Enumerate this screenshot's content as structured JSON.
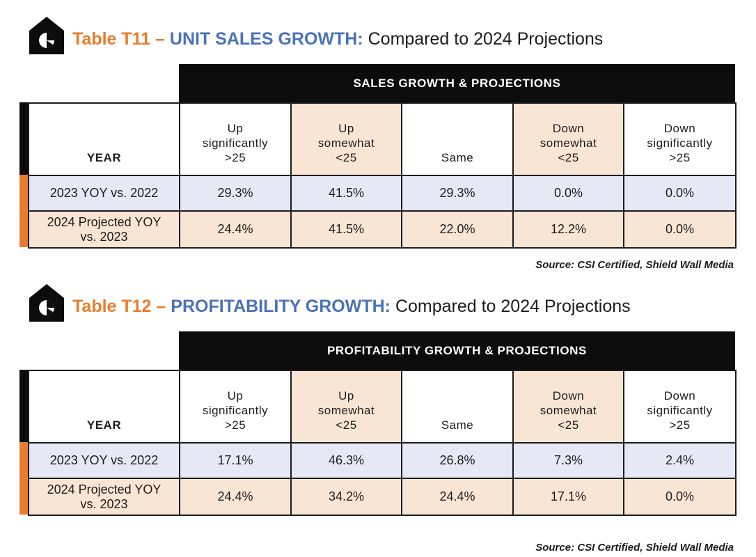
{
  "chart_data": [
    {
      "type": "table",
      "table_number": "Table T11",
      "title": "UNIT SALES GROWTH:",
      "subtitle": "Compared to 2024 Projections",
      "banner": "SALES GROWTH & PROJECTIONS",
      "row_header": "YEAR",
      "columns": [
        "Up\nsignificantly\n>25",
        "Up\nsomewhat\n<25",
        "Same",
        "Down\nsomewhat\n<25",
        "Down\nsignificantly\n>25"
      ],
      "rows": [
        {
          "label": "2023 YOY vs. 2022",
          "values": [
            "29.3%",
            "41.5%",
            "29.3%",
            "0.0%",
            "0.0%"
          ]
        },
        {
          "label": "2024 Projected YOY\nvs. 2023",
          "values": [
            "24.4%",
            "41.5%",
            "22.0%",
            "12.2%",
            "0.0%"
          ]
        }
      ],
      "source": "Source: CSI Certified, Shield Wall Media"
    },
    {
      "type": "table",
      "table_number": "Table T12",
      "title": "PROFITABILITY GROWTH:",
      "subtitle": "Compared to 2024 Projections",
      "banner": "PROFITABILITY GROWTH & PROJECTIONS",
      "row_header": "YEAR",
      "columns": [
        "Up\nsignificantly\n>25",
        "Up\nsomewhat\n<25",
        "Same",
        "Down\nsomewhat\n<25",
        "Down\nsignificantly\n>25"
      ],
      "rows": [
        {
          "label": "2023 YOY vs. 2022",
          "values": [
            "17.1%",
            "46.3%",
            "26.8%",
            "7.3%",
            "2.4%"
          ]
        },
        {
          "label": "2024 Projected YOY\nvs. 2023",
          "values": [
            "24.4%",
            "34.2%",
            "24.4%",
            "17.1%",
            "0.0%"
          ]
        }
      ],
      "source": "Source: CSI Certified, Shield Wall Media"
    }
  ],
  "colors": {
    "accent_orange": "#e87d2f",
    "accent_blue": "#4a72b8",
    "peach_fill": "#f9e5d4",
    "blue_fill": "#e6e9f5",
    "banner_black": "#0c0c0c"
  },
  "icons": {
    "title_icon": "house-pie-chart-icon"
  }
}
